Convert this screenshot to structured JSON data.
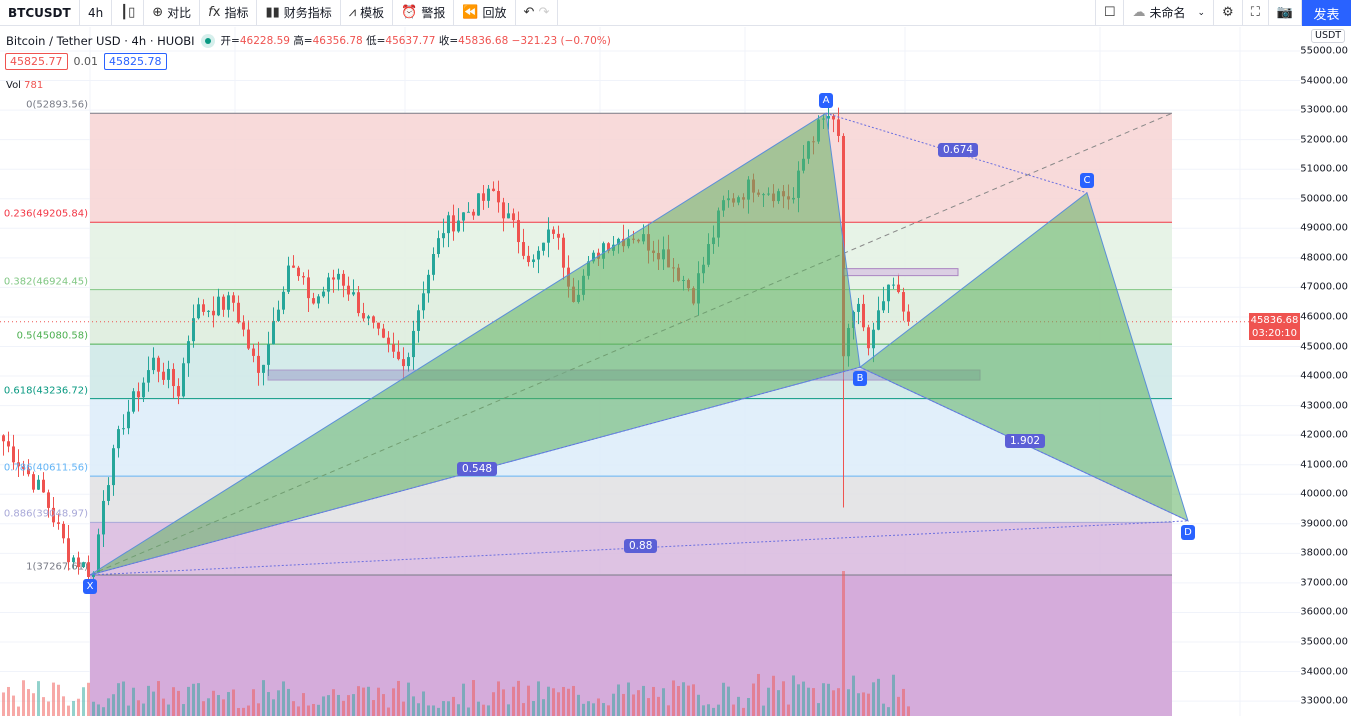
{
  "toolbar": {
    "symbol": "BTCUSDT",
    "interval": "4h",
    "compare": "对比",
    "indicators": "指标",
    "financials": "财务指标",
    "templates": "模板",
    "alert": "警报",
    "replay": "回放",
    "layout_name": "未命名",
    "publish": "发表"
  },
  "legend": {
    "title": "Bitcoin / Tether USD · 4h · HUOBI",
    "open_label": "开=",
    "open": "46228.59",
    "high_label": "高=",
    "high": "46356.78",
    "low_label": "低=",
    "low": "45637.77",
    "close_label": "收=",
    "close": "45836.68",
    "change": "−321.23 (−0.70%)"
  },
  "quote": {
    "bid": "45825.77",
    "spread": "0.01",
    "ask": "45825.78"
  },
  "volume": {
    "label": "Vol",
    "value": "781"
  },
  "price_axis": {
    "currency": "USDT",
    "ticks": [
      "55000.00",
      "54000.00",
      "53000.00",
      "52000.00",
      "51000.00",
      "50000.00",
      "49000.00",
      "48000.00",
      "47000.00",
      "46000.00",
      "45000.00",
      "44000.00",
      "43000.00",
      "42000.00",
      "41000.00",
      "40000.00",
      "39000.00",
      "38000.00",
      "37000.00",
      "36000.00",
      "35000.00",
      "34000.00",
      "33000.00"
    ],
    "last_price": "45836.68",
    "countdown": "03:20:10"
  },
  "fib_levels": [
    {
      "label": "0(52893.56)",
      "price": 52893.56,
      "color": "#787b86"
    },
    {
      "label": "0.236(49205.84)",
      "price": 49205.84,
      "color": "#f23645"
    },
    {
      "label": "0.382(46924.45)",
      "price": 46924.45,
      "color": "#81c784"
    },
    {
      "label": "0.5(45080.58)",
      "price": 45080.58,
      "color": "#4caf50"
    },
    {
      "label": "0.618(43236.72)",
      "price": 43236.72,
      "color": "#089981"
    },
    {
      "label": "0.786(40611.56)",
      "price": 40611.56,
      "color": "#64b5f6"
    },
    {
      "label": "0.886(39048.97)",
      "price": 39048.97,
      "color": "#a8a8d8"
    },
    {
      "label": "1(37267.61)",
      "price": 37267.61,
      "color": "#787b86"
    }
  ],
  "fib_fills": [
    "#f7d4d4",
    "#e3f1e3",
    "#dcecdc",
    "#cce8e6",
    "#dcecf9",
    "#e1e1e3",
    "#d8b8de"
  ],
  "pattern": {
    "points": [
      {
        "label": "X",
        "price": 37267.61
      },
      {
        "label": "A",
        "price": 52893.56
      },
      {
        "label": "B",
        "price": 44300
      },
      {
        "label": "C",
        "price": 50200
      },
      {
        "label": "D",
        "price": 39100
      }
    ],
    "ratios": [
      "0.548",
      "0.674",
      "1.902",
      "0.88"
    ]
  },
  "colors": {
    "up": "#26a69a",
    "down": "#ef5350",
    "accent": "#2962ff"
  },
  "chart_data": {
    "type": "candlestick",
    "anchors": [
      [
        0,
        41800
      ],
      [
        8,
        40000
      ],
      [
        13,
        38000
      ],
      [
        18,
        37300
      ],
      [
        20,
        40000
      ],
      [
        24,
        42500
      ],
      [
        30,
        44500
      ],
      [
        35,
        43500
      ],
      [
        38,
        46200
      ],
      [
        46,
        46500
      ],
      [
        51,
        44000
      ],
      [
        57,
        47800
      ],
      [
        62,
        46500
      ],
      [
        67,
        47500
      ],
      [
        76,
        45000
      ],
      [
        80,
        44300
      ],
      [
        84,
        47000
      ],
      [
        88,
        49000
      ],
      [
        98,
        50200
      ],
      [
        106,
        47800
      ],
      [
        110,
        49000
      ],
      [
        114,
        46800
      ],
      [
        120,
        48500
      ],
      [
        126,
        48800
      ],
      [
        132,
        48200
      ],
      [
        138,
        46800
      ],
      [
        144,
        49800
      ],
      [
        150,
        50500
      ],
      [
        158,
        50000
      ],
      [
        161,
        52000
      ],
      [
        165,
        52800
      ],
      [
        167,
        52000
      ],
      [
        168,
        44700
      ],
      [
        171,
        46500
      ],
      [
        173,
        44800
      ],
      [
        176,
        46500
      ],
      [
        178,
        47000
      ],
      [
        181,
        45836.68
      ]
    ]
  }
}
